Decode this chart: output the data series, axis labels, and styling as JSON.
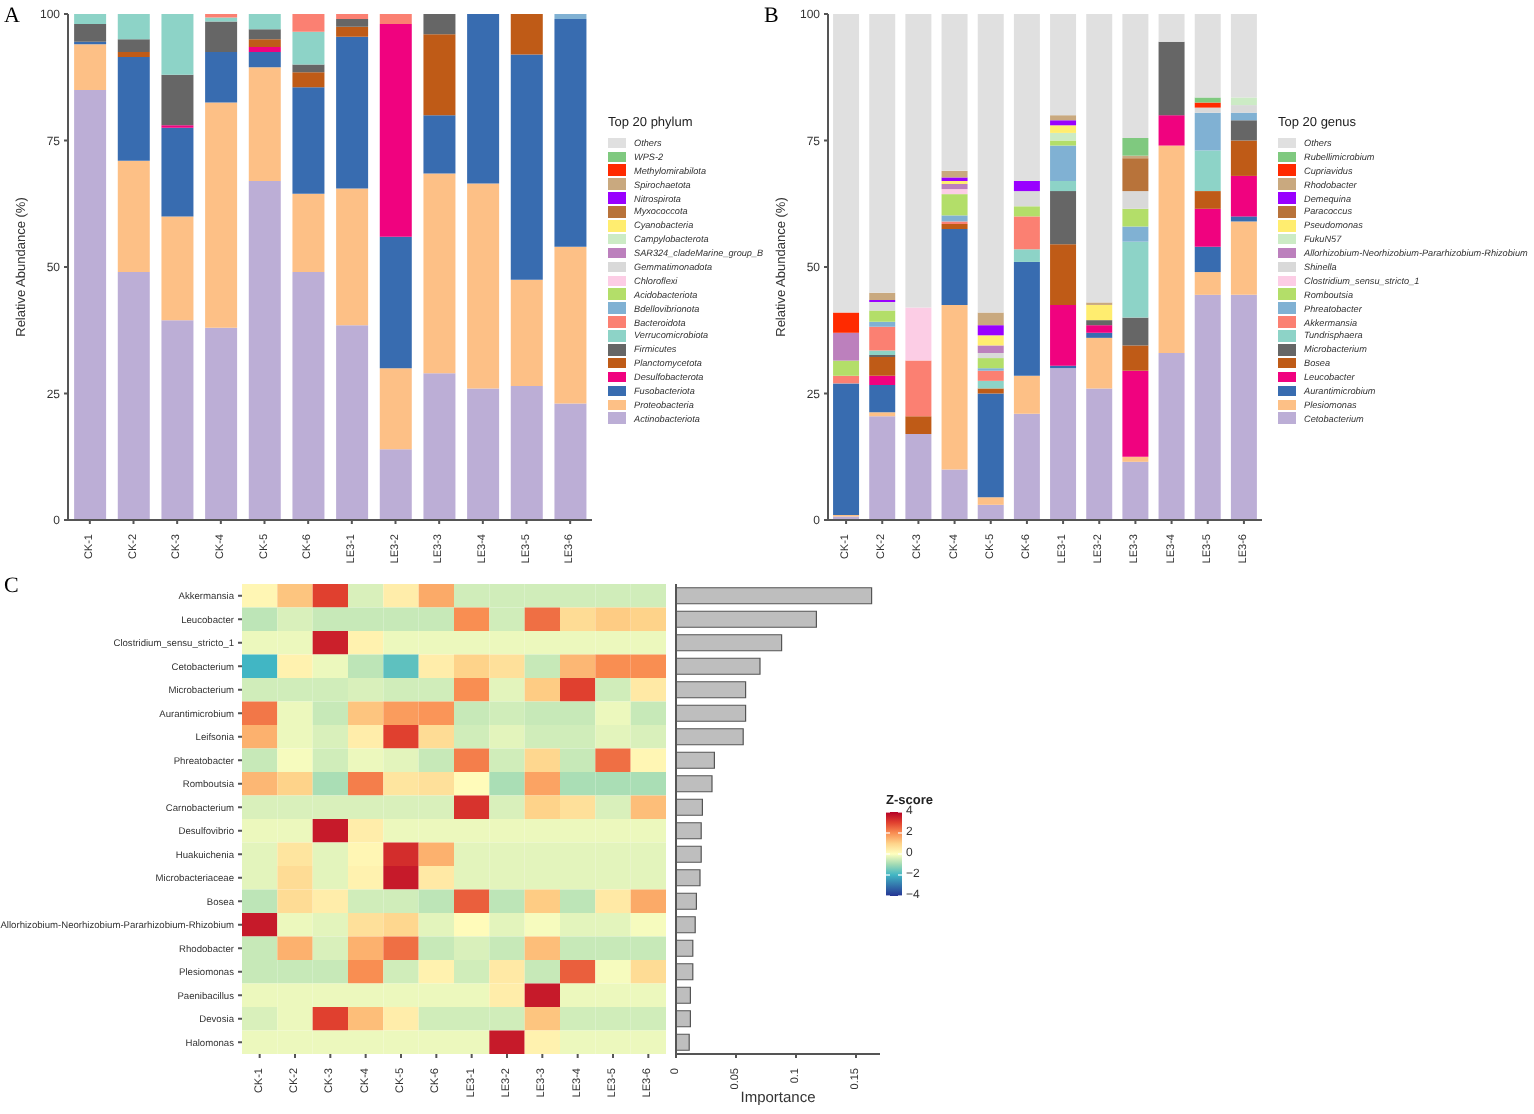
{
  "chart_data": [
    {
      "type": "bar",
      "title": "A",
      "ylabel": "Relative Abundance (%)",
      "legend_title": "Top 20 phylum",
      "legend": "right",
      "stacked": true,
      "ylim": [
        0,
        100
      ],
      "yticks": [
        0,
        25,
        50,
        75,
        100
      ],
      "categories": [
        "CK-1",
        "CK-2",
        "CK-3",
        "CK-4",
        "CK-5",
        "CK-6",
        "LE3-1",
        "LE3-2",
        "LE3-3",
        "LE3-4",
        "LE3-5",
        "LE3-6"
      ],
      "series": [
        {
          "name": "Actinobacteriota",
          "color": "#bcaed6",
          "values": [
            85,
            49,
            39.5,
            38,
            67,
            49,
            38.5,
            14,
            29,
            26,
            26.5,
            23
          ]
        },
        {
          "name": "Proteobacteria",
          "color": "#fdc086",
          "values": [
            9,
            22,
            20.5,
            44.5,
            22.5,
            15.5,
            27,
            16,
            39.5,
            40.5,
            21,
            31
          ]
        },
        {
          "name": "Fusobacteriota",
          "color": "#386cb0",
          "values": [
            0.5,
            20.5,
            17.5,
            10,
            3,
            21,
            30,
            26,
            11.5,
            33.5,
            44.5,
            45
          ]
        },
        {
          "name": "Desulfobacterota",
          "color": "#f0027f",
          "values": [
            0,
            0,
            0.5,
            0,
            1,
            0,
            0,
            42,
            0,
            0,
            0,
            0
          ]
        },
        {
          "name": "Planctomycetota",
          "color": "#bf5b17",
          "values": [
            0,
            1,
            0,
            0,
            1.5,
            3,
            2,
            0,
            16,
            0,
            8,
            0
          ]
        },
        {
          "name": "Firmicutes",
          "color": "#666666",
          "values": [
            3.5,
            2.5,
            10,
            6,
            2,
            1.5,
            1.5,
            0,
            4,
            0,
            0,
            0
          ]
        },
        {
          "name": "Verrucomicrobiota",
          "color": "#8dd3c7",
          "values": [
            2,
            5,
            12,
            0.8,
            3,
            6.5,
            0,
            0,
            0,
            0,
            0,
            0
          ]
        },
        {
          "name": "Bacteroidota",
          "color": "#fb8072",
          "values": [
            0,
            0,
            0,
            0.7,
            0,
            3.5,
            1,
            2,
            0,
            0,
            0,
            0
          ]
        },
        {
          "name": "Bdellovibrionota",
          "color": "#80b1d3",
          "values": [
            0,
            0,
            0,
            0,
            0,
            0,
            0,
            0,
            0,
            0,
            0,
            1
          ]
        },
        {
          "name": "Acidobacteriota",
          "color": "#b3de69",
          "values": [
            0,
            0,
            0,
            0,
            0,
            0,
            0,
            0,
            0,
            0,
            0,
            0
          ]
        },
        {
          "name": "Chloroflexi",
          "color": "#fccde5",
          "values": [
            0,
            0,
            0,
            0,
            0,
            0,
            0,
            0,
            0,
            0,
            0,
            0
          ]
        },
        {
          "name": "Gemmatimonadota",
          "color": "#d9d9d9",
          "values": [
            0,
            0,
            0,
            0,
            0,
            0,
            0,
            0,
            0,
            0,
            0,
            0
          ]
        },
        {
          "name": "SAR324_cladeMarine_group_B",
          "color": "#bc80bd",
          "values": [
            0,
            0,
            0,
            0,
            0,
            0,
            0,
            0,
            0,
            0,
            0,
            0
          ]
        },
        {
          "name": "Campylobacterota",
          "color": "#ccebc5",
          "values": [
            0,
            0,
            0,
            0,
            0,
            0,
            0,
            0,
            0,
            0,
            0,
            0
          ]
        },
        {
          "name": "Cyanobacteria",
          "color": "#ffed6f",
          "values": [
            0,
            0,
            0,
            0,
            0,
            0,
            0,
            0,
            0,
            0,
            0,
            0
          ]
        },
        {
          "name": "Myxococcota",
          "color": "#b8733a",
          "values": [
            0,
            0,
            0,
            0,
            0,
            0,
            0,
            0,
            0,
            0,
            0,
            0
          ]
        },
        {
          "name": "Nitrospirota",
          "color": "#9900ff",
          "values": [
            0,
            0,
            0,
            0,
            0,
            0,
            0,
            0,
            0,
            0,
            0,
            0
          ]
        },
        {
          "name": "Spirochaetota",
          "color": "#c9a97f",
          "values": [
            0,
            0,
            0,
            0,
            0,
            0,
            0,
            0,
            0,
            0,
            0,
            0
          ]
        },
        {
          "name": "Methylomirabilota",
          "color": "#ff2a00",
          "values": [
            0,
            0,
            0,
            0,
            0,
            0,
            0,
            0,
            0,
            0,
            0,
            0
          ]
        },
        {
          "name": "WPS-2",
          "color": "#7fc97f",
          "values": [
            0,
            0,
            0,
            0,
            0,
            0,
            0,
            0,
            0,
            0,
            0,
            0
          ]
        },
        {
          "name": "Others",
          "color": "#e0e0e0",
          "values": [
            0,
            0,
            0,
            0,
            0,
            0,
            0,
            0,
            0,
            0,
            0,
            0
          ]
        }
      ]
    },
    {
      "type": "bar",
      "title": "B",
      "ylabel": "Relative Abundance (%)",
      "legend_title": "Top 20 genus",
      "legend": "right",
      "stacked": true,
      "ylim": [
        0,
        100
      ],
      "yticks": [
        0,
        25,
        50,
        75,
        100
      ],
      "categories": [
        "CK-1",
        "CK-2",
        "CK-3",
        "CK-4",
        "CK-5",
        "CK-6",
        "LE3-1",
        "LE3-2",
        "LE3-3",
        "LE3-4",
        "LE3-5",
        "LE3-6"
      ],
      "series": [
        {
          "name": "Cetobacterium",
          "color": "#bcaed6",
          "values": [
            0.7,
            20.5,
            17,
            10,
            3,
            21,
            30,
            26,
            11.5,
            33,
            44.5,
            44.5
          ]
        },
        {
          "name": "Plesiomonas",
          "color": "#fdc086",
          "values": [
            0.3,
            0.8,
            0,
            32.5,
            1.5,
            7.5,
            0,
            10,
            1,
            41,
            4.5,
            14.5
          ]
        },
        {
          "name": "Aurantimicrobium",
          "color": "#386cb0",
          "values": [
            26,
            5.4,
            0,
            15,
            20.5,
            22.5,
            0.5,
            1,
            0,
            0,
            5,
            1
          ]
        },
        {
          "name": "Leucobacter",
          "color": "#f0027f",
          "values": [
            0,
            1.8,
            0,
            0,
            0,
            0,
            12,
            1.5,
            17,
            6,
            7.5,
            8
          ]
        },
        {
          "name": "Bosea",
          "color": "#bf5b17",
          "values": [
            0,
            3.7,
            3.5,
            1,
            1,
            0,
            12,
            0,
            5,
            0,
            3.5,
            7
          ]
        },
        {
          "name": "Microbacterium",
          "color": "#666666",
          "values": [
            0,
            0.4,
            0,
            0,
            0,
            0,
            10.5,
            1,
            5.5,
            14.5,
            0,
            4
          ]
        },
        {
          "name": "Tundrisphaera",
          "color": "#8dd3c7",
          "values": [
            0,
            0.9,
            0,
            0,
            1.5,
            2.5,
            2,
            0,
            15,
            0,
            8,
            0
          ]
        },
        {
          "name": "Akkermansia",
          "color": "#fb8072",
          "values": [
            1.5,
            4.7,
            11,
            0.5,
            2,
            6.5,
            0,
            0,
            0,
            0,
            0,
            0
          ]
        },
        {
          "name": "Phreatobacter",
          "color": "#80b1d3",
          "values": [
            0,
            1,
            0,
            1.2,
            0.5,
            0,
            7,
            0,
            3,
            0,
            7.5,
            1.5
          ]
        },
        {
          "name": "Romboutsia",
          "color": "#b3de69",
          "values": [
            3,
            2.2,
            0,
            4.2,
            2,
            2,
            1,
            0,
            3.5,
            0,
            0,
            0
          ]
        },
        {
          "name": "Clostridium_sensu_stricto_1",
          "color": "#fccde5",
          "values": [
            0,
            0,
            10.5,
            1,
            0,
            0,
            0,
            0,
            0,
            0,
            0,
            0
          ]
        },
        {
          "name": "Shinella",
          "color": "#d9d9d9",
          "values": [
            0,
            1.7,
            0,
            0,
            1,
            3,
            0,
            0,
            3.5,
            0,
            1,
            1.5
          ]
        },
        {
          "name": "Allorhizobium-Neorhizobium-Pararhizobium-Rhizobium",
          "color": "#bc80bd",
          "values": [
            5.5,
            0,
            0,
            1,
            1.5,
            0,
            0,
            0,
            0,
            0,
            0,
            0
          ]
        },
        {
          "name": "FukuN57",
          "color": "#ccebc5",
          "values": [
            0,
            0,
            0,
            0,
            0,
            0,
            1.5,
            0,
            0,
            0,
            0,
            1.5
          ]
        },
        {
          "name": "Pseudomonas",
          "color": "#ffed6f",
          "values": [
            0,
            0,
            0,
            0.6,
            2,
            0,
            1.5,
            3,
            0,
            0,
            0,
            0
          ]
        },
        {
          "name": "Paracoccus",
          "color": "#b8733a",
          "values": [
            0,
            0,
            0,
            0,
            0,
            0,
            0,
            0,
            6.5,
            0,
            0,
            0
          ]
        },
        {
          "name": "Demequina",
          "color": "#9900ff",
          "values": [
            0,
            0.4,
            0,
            0.7,
            2,
            2,
            1,
            0,
            0,
            0,
            0,
            0
          ]
        },
        {
          "name": "Rhodobacter",
          "color": "#c9a97f",
          "values": [
            0,
            1.4,
            0,
            1.3,
            2.5,
            0,
            1,
            0.5,
            0.5,
            0,
            0,
            0
          ]
        },
        {
          "name": "Cupriavidus",
          "color": "#ff2a00",
          "values": [
            4,
            0,
            0,
            0,
            0,
            0,
            0,
            0,
            0,
            0,
            1,
            0
          ]
        },
        {
          "name": "Rubellimicrobium",
          "color": "#7fc97f",
          "values": [
            0,
            0,
            0,
            0,
            0,
            0,
            0,
            0,
            3.5,
            0,
            1,
            0
          ]
        },
        {
          "name": "Others",
          "color": "#e0e0e0",
          "values": [
            59,
            55.1,
            58,
            31,
            59,
            33,
            20,
            57,
            24.5,
            5.5,
            16.5,
            16.5
          ]
        }
      ]
    },
    {
      "type": "heatmap",
      "title": "C",
      "clabel": "Z-score",
      "clim": [
        -4,
        4
      ],
      "cticks": [
        -4,
        -2,
        0,
        2,
        4
      ],
      "categories": [
        "CK-1",
        "CK-2",
        "CK-3",
        "CK-4",
        "CK-5",
        "CK-6",
        "LE3-1",
        "LE3-2",
        "LE3-3",
        "LE3-4",
        "LE3-5",
        "LE3-6"
      ],
      "y_categories": [
        "Akkermansia",
        "Leucobacter",
        "Clostridium_sensu_stricto_1",
        "Cetobacterium",
        "Microbacterium",
        "Aurantimicrobium",
        "Leifsonia",
        "Phreatobacter",
        "Romboutsia",
        "Carnobacterium",
        "Desulfovibrio",
        "Huakuichenia",
        "Microbacteriaceae",
        "Bosea",
        "Allorhizobium-Neorhizobium-Pararhizobium-Rhizobium",
        "Rhodobacter",
        "Plesiomonas",
        "Paenibacillus",
        "Devosia",
        "Halomonas"
      ],
      "cells": [
        [
          0.2,
          1.2,
          3,
          -0.4,
          0.4,
          1.6,
          -0.5,
          -0.5,
          -0.5,
          -0.5,
          -0.5,
          -0.5
        ],
        [
          -0.7,
          -0.4,
          -0.6,
          -0.6,
          -0.6,
          -0.6,
          2,
          -0.5,
          2.4,
          0.8,
          1.1,
          1
        ],
        [
          -0.2,
          -0.2,
          3.5,
          0.3,
          -0.2,
          -0.2,
          -0.2,
          -0.2,
          -0.2,
          -0.2,
          -0.2,
          -0.2
        ],
        [
          -2,
          0.3,
          -0.2,
          -0.7,
          -1.7,
          0.4,
          1,
          0.7,
          -0.6,
          1.4,
          2,
          2
        ],
        [
          -0.5,
          -0.5,
          -0.5,
          -0.4,
          -0.5,
          -0.5,
          2,
          -0.3,
          1.1,
          3,
          -0.5,
          0.5
        ],
        [
          2.3,
          -0.2,
          -0.6,
          1.2,
          1.8,
          1.9,
          -0.6,
          -0.5,
          -0.6,
          -0.6,
          -0.2,
          -0.6
        ],
        [
          1.5,
          -0.2,
          -0.4,
          0.4,
          3,
          0.8,
          -0.5,
          -0.3,
          -0.5,
          -0.5,
          -0.3,
          -0.4
        ],
        [
          -0.6,
          -0.1,
          -0.5,
          -0.2,
          -0.3,
          -0.6,
          2.2,
          -0.5,
          0.9,
          -0.6,
          2.4,
          0.2
        ],
        [
          1.4,
          1,
          -0.9,
          2.2,
          0.6,
          0.7,
          0.1,
          -0.9,
          1.7,
          -0.9,
          -0.9,
          -0.9
        ],
        [
          -0.4,
          -0.4,
          -0.4,
          -0.4,
          -0.4,
          -0.4,
          3.2,
          -0.4,
          1,
          0.7,
          -0.4,
          1.3
        ],
        [
          -0.2,
          -0.2,
          3.6,
          0.4,
          -0.2,
          -0.2,
          -0.2,
          -0.2,
          -0.2,
          -0.2,
          -0.2,
          -0.2
        ],
        [
          -0.3,
          0.6,
          -0.3,
          0.2,
          3.3,
          1.5,
          -0.3,
          -0.3,
          -0.3,
          -0.3,
          -0.3,
          -0.3
        ],
        [
          -0.3,
          0.8,
          -0.3,
          0.3,
          3.6,
          0.5,
          -0.3,
          -0.3,
          -0.3,
          -0.3,
          -0.3,
          -0.3
        ],
        [
          -0.7,
          0.8,
          0.4,
          -0.5,
          -0.5,
          -0.7,
          2.6,
          -0.7,
          1.1,
          -0.7,
          0.5,
          1.6
        ],
        [
          3.6,
          -0.2,
          -0.3,
          0.7,
          0.9,
          -0.3,
          0.1,
          -0.3,
          -0.1,
          -0.3,
          -0.3,
          -0.1
        ],
        [
          -0.6,
          1.5,
          -0.4,
          1.5,
          2.4,
          -0.6,
          -0.4,
          -0.6,
          1.3,
          -0.6,
          -0.6,
          -0.6
        ],
        [
          -0.6,
          -0.6,
          -0.6,
          2,
          -0.5,
          0.3,
          -0.5,
          0.5,
          -0.6,
          2.6,
          -0.1,
          0.8
        ],
        [
          -0.2,
          -0.2,
          -0.2,
          -0.2,
          -0.2,
          -0.2,
          -0.2,
          0.4,
          3.6,
          -0.2,
          -0.2,
          -0.2
        ],
        [
          -0.4,
          -0.2,
          3,
          1.3,
          0.4,
          -0.5,
          -0.5,
          -0.5,
          1.2,
          -0.5,
          -0.5,
          -0.5
        ],
        [
          -0.2,
          -0.2,
          -0.2,
          -0.2,
          -0.2,
          -0.2,
          -0.2,
          3.6,
          0.3,
          -0.2,
          -0.2,
          -0.2
        ]
      ]
    },
    {
      "type": "bar",
      "orientation": "horizontal",
      "xlabel": "Importance",
      "color": "#bebebe",
      "tick_labels": "x",
      "xlim": [
        0,
        0.17
      ],
      "xticks": [
        0,
        0.05,
        0.1,
        0.15
      ],
      "categories": [
        null,
        null,
        null,
        null,
        null,
        null,
        null,
        null,
        null,
        null,
        null,
        null,
        null,
        null,
        null,
        null,
        null,
        null,
        null,
        null
      ],
      "values": [
        0.163,
        0.117,
        0.088,
        0.07,
        0.058,
        0.058,
        0.056,
        0.032,
        0.03,
        0.022,
        0.021,
        0.021,
        0.02,
        0.017,
        0.016,
        0.014,
        0.014,
        0.012,
        0.012,
        0.011
      ]
    }
  ]
}
